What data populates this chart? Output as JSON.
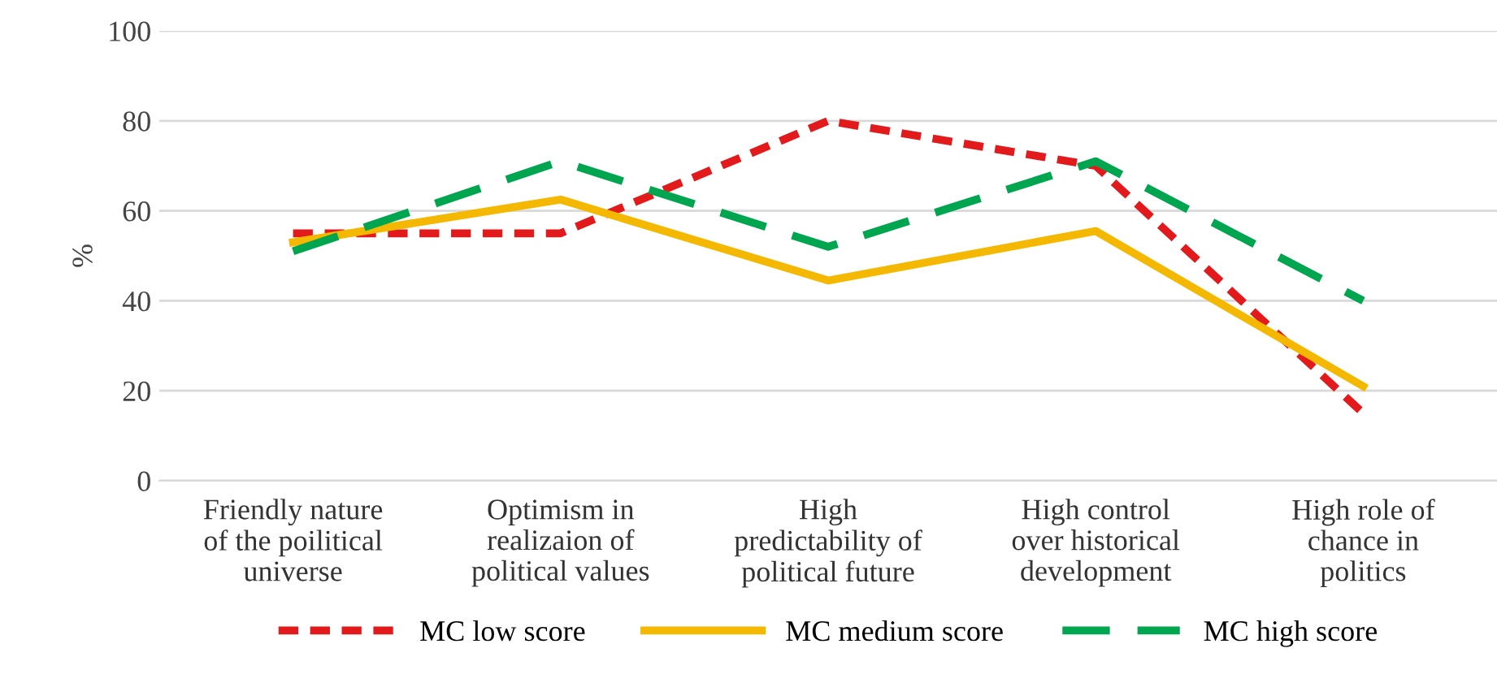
{
  "chart_data": {
    "type": "line",
    "ylabel": "%",
    "categories": [
      "Friendly nature\nof the poilitical\nuniverse",
      "Optimism in\nrealizaion of\npolitical values",
      "High\npredictability of\npolitical future",
      "High control\nover historical\ndevelopment",
      "High role of\nchance in\npolitics"
    ],
    "series": [
      {
        "name": "MC low score",
        "color": "#e31a1c",
        "line_style": "dotted",
        "values": [
          55,
          55,
          80,
          70,
          15
        ]
      },
      {
        "name": "MC medium score",
        "color": "#f5b800",
        "line_style": "solid",
        "values": [
          53,
          62.5,
          44.5,
          55.5,
          21
        ]
      },
      {
        "name": "MC high score",
        "color": "#00a64f",
        "line_style": "dashed",
        "values": [
          51,
          71,
          52,
          71,
          40
        ]
      }
    ],
    "ylim": [
      0,
      100
    ],
    "yticks": [
      0,
      20,
      40,
      60,
      80,
      100
    ],
    "grid": "y",
    "legend": "bottom",
    "marker": "none"
  }
}
